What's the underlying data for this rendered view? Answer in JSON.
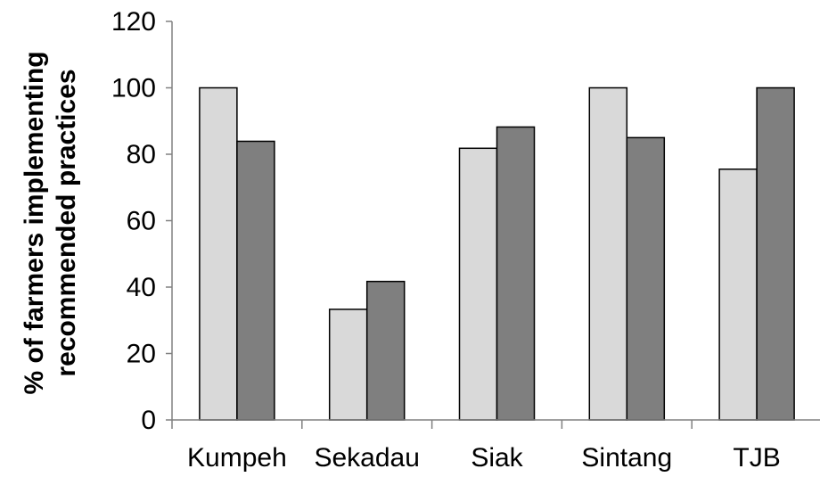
{
  "chart_data": {
    "type": "bar",
    "title": "",
    "xlabel": "",
    "ylabel_lines": [
      "% of farmers implementing",
      "recommended practices"
    ],
    "categories": [
      "Kumpeh",
      "Sekadau",
      "Siak",
      "Sintang",
      "TJB"
    ],
    "series": [
      {
        "color": "#d9d9d9",
        "values": [
          100,
          33.3,
          81.8,
          100,
          75.5
        ]
      },
      {
        "color": "#7f7f7f",
        "values": [
          83.9,
          41.7,
          88.2,
          85.0,
          100
        ]
      }
    ],
    "ylim": [
      0,
      120
    ],
    "yticks": [
      0,
      20,
      40,
      60,
      80,
      100,
      120
    ],
    "grid": false,
    "legend": "none"
  }
}
